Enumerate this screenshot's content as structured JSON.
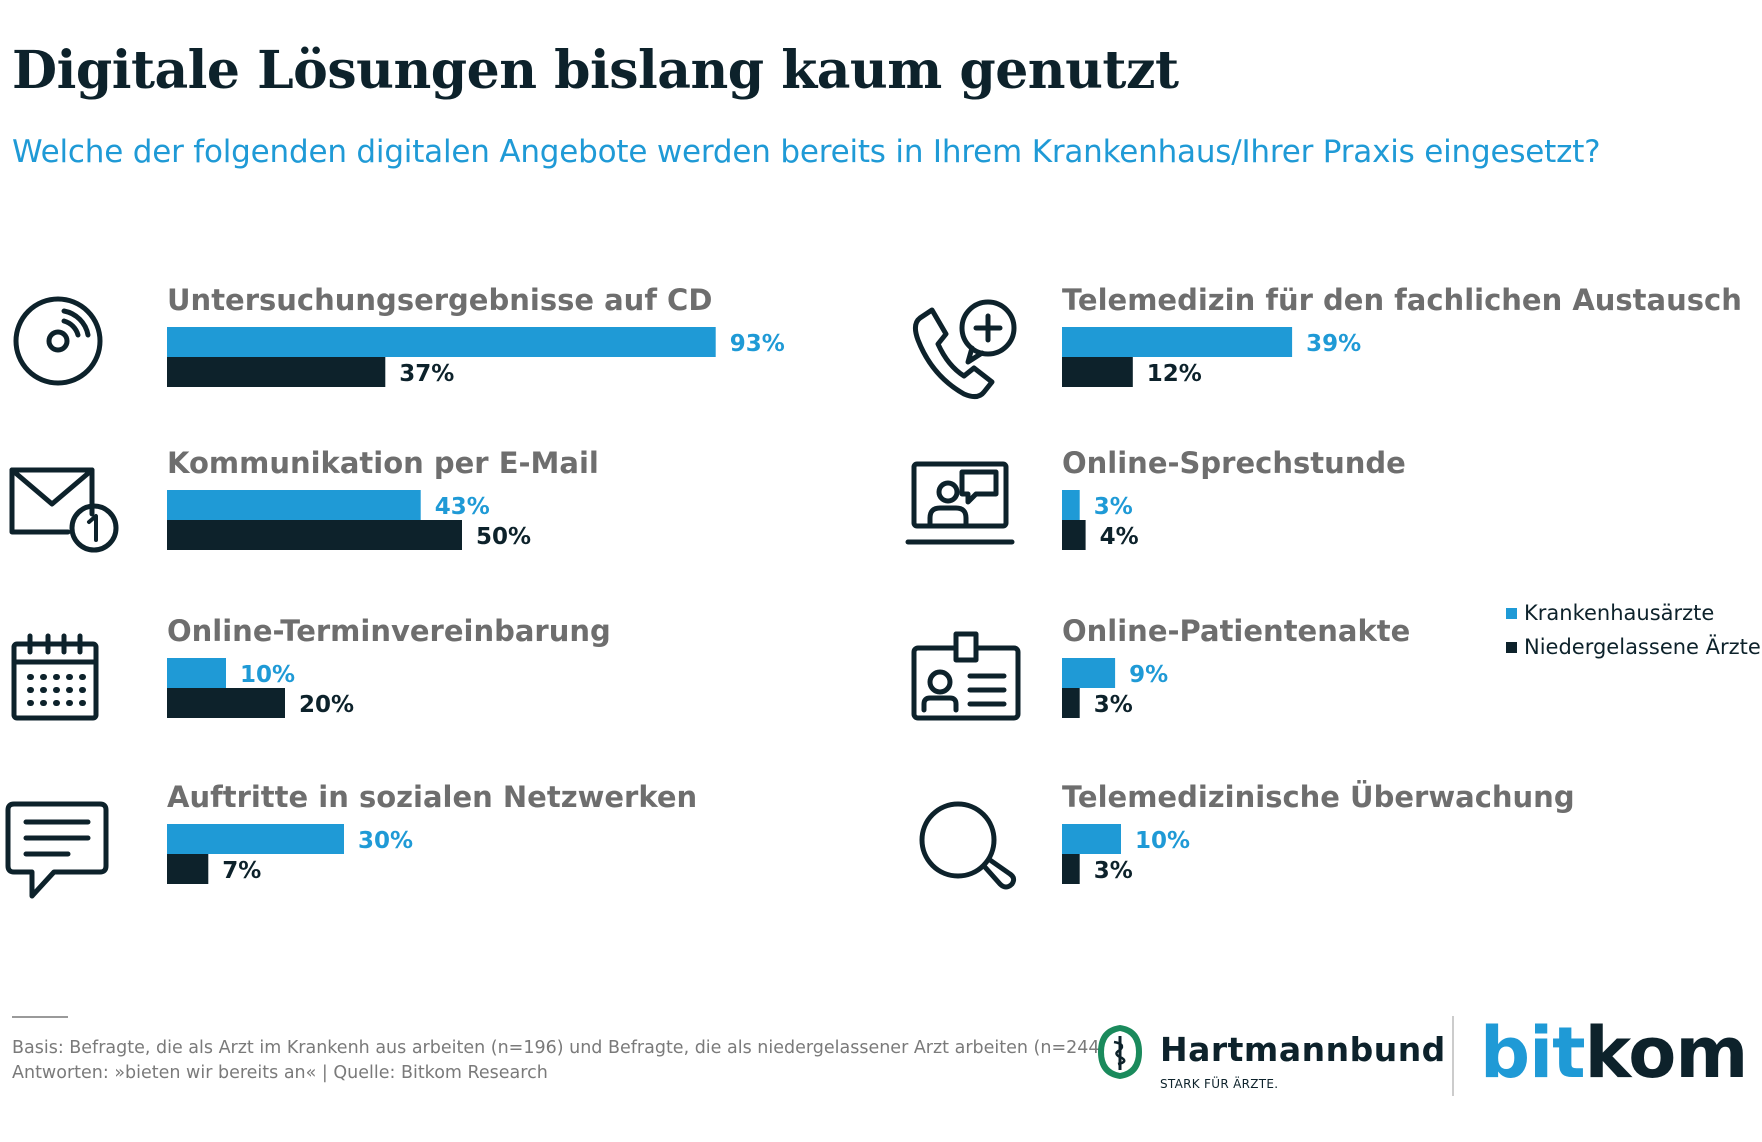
{
  "header": {
    "title": "Digitale Lösungen bislang kaum genutzt",
    "subtitle": "Welche der folgenden digitalen Angebote werden bereits in Ihrem Krankenhaus/Ihrer Praxis eingesetzt?"
  },
  "colors": {
    "krankenhaus": "#1f9ad6",
    "niedergelassen": "#0d222b",
    "label": "#6e6e6e"
  },
  "legend": {
    "placement": "right",
    "items": [
      "Krankenhausärzte",
      "Niedergelassene Ärzte"
    ]
  },
  "chart_data": {
    "type": "bar",
    "orientation": "horizontal",
    "unit": "%",
    "xlim": [
      0,
      100
    ],
    "categories": [
      "Untersuchungsergebnisse auf CD",
      "Kommunikation per E-Mail",
      "Online-Terminvereinbarung",
      "Auftritte in sozialen Netzwerken",
      "Telemedizin für den fachlichen Austausch",
      "Online-Sprechstunde",
      "Online-Patientenakte",
      "Telemedizinische Überwachung"
    ],
    "icons": [
      "cd-icon",
      "email-icon",
      "calendar-icon",
      "chat-icon",
      "telemedicine-phone-icon",
      "video-consultation-icon",
      "patient-record-icon",
      "magnifier-icon"
    ],
    "series": [
      {
        "name": "Krankenhausärzte",
        "values": [
          93,
          43,
          10,
          30,
          39,
          3,
          9,
          10
        ]
      },
      {
        "name": "Niedergelassene Ärzte",
        "values": [
          37,
          50,
          20,
          7,
          12,
          4,
          3,
          3
        ]
      }
    ]
  },
  "footer": {
    "basis": "Basis: Befragte, die als Arzt im Krankenh aus arbeiten (n=196) und Befragte, die als niedergelassener Arzt arbeiten (n=244)",
    "antworten": "Antworten: »bieten wir bereits an« | Quelle: Bitkom Research",
    "logo1_name": "Hartmannbund",
    "logo1_tagline": "STARK FÜR ÄRZTE.",
    "logo2_part1": "bit",
    "logo2_part2": "kom"
  }
}
